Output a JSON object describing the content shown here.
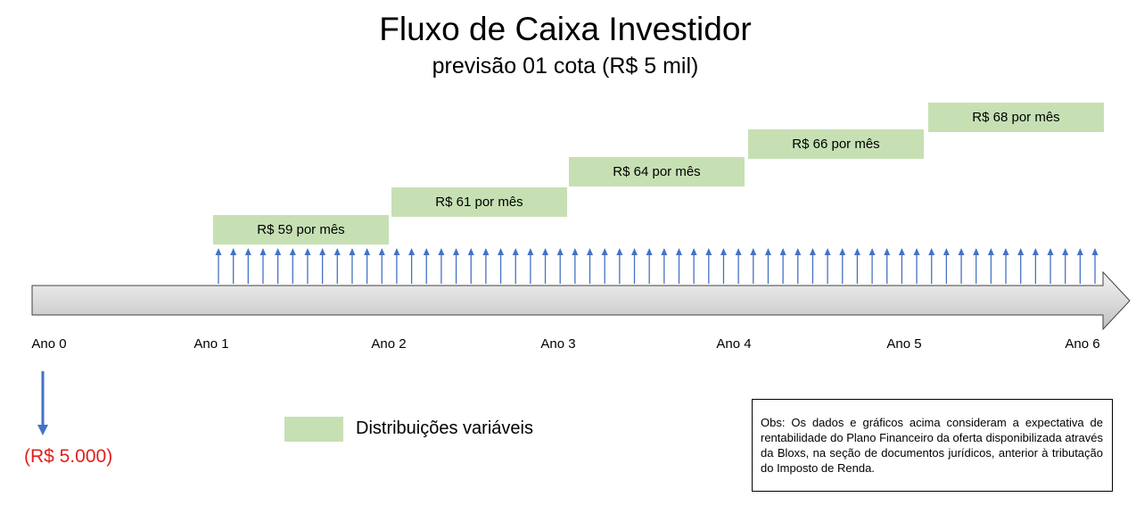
{
  "title": "Fluxo de Caixa Investidor",
  "subtitle": "previsão 01 cota (R$ 5 mil)",
  "distributions": [
    {
      "label": "R$ 59 por mês"
    },
    {
      "label": "R$ 61 por mês"
    },
    {
      "label": "R$ 64 por mês"
    },
    {
      "label": "R$ 66 por mês"
    },
    {
      "label": "R$ 68 por mês"
    }
  ],
  "years": [
    "Ano 0",
    "Ano 1",
    "Ano 2",
    "Ano 3",
    "Ano 4",
    "Ano 5",
    "Ano 6"
  ],
  "monthly_arrow_count": 60,
  "investment": {
    "label": "(R$ 5.000)",
    "color": "#e0201b"
  },
  "legend": {
    "label": "Distribuições variáveis",
    "color": "#c6e0b4"
  },
  "note": "Obs: Os dados e gráficos acima consideram a expectativa de rentabilidade do Plano Financeiro da oferta disponibilizada através da Bloxs, na seção de documentos jurídicos, anterior à tributação do Imposto de Renda.",
  "colors": {
    "arrow": "#4472c4",
    "box": "#c6e0b4",
    "timeline": "#d9d9d9"
  }
}
